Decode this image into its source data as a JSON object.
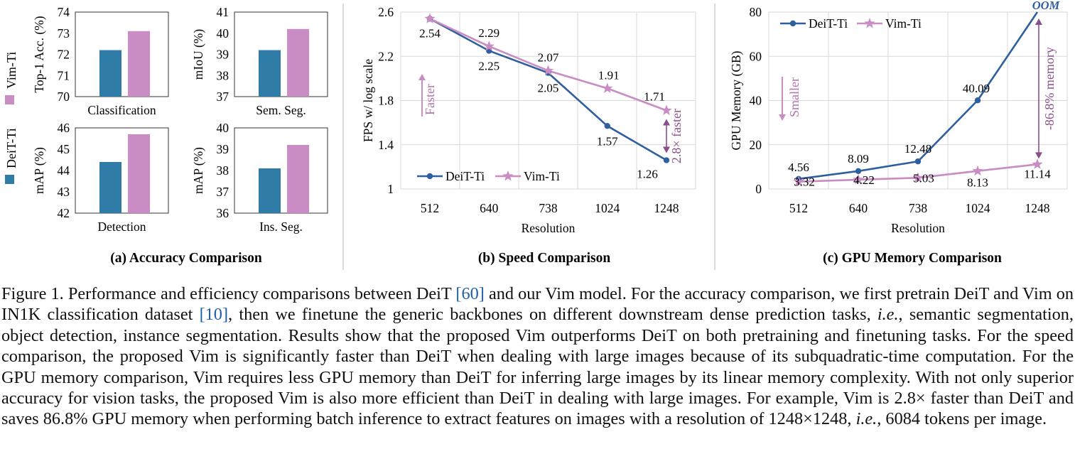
{
  "colors": {
    "deit": "#2f7ca8",
    "vim": "#c98cc3",
    "deit_line": "#2e5f9e",
    "vim_line": "#c98cc3",
    "vim_text": "#b175ac",
    "annot": "#8a4f8a"
  },
  "legend_a": {
    "vim": "Vim-Ti",
    "deit": "DeiT-Ti"
  },
  "panel_titles": {
    "a": "(a) Accuracy Comparison",
    "b": "(b) Speed Comparison",
    "c": "(c) GPU Memory Comparison"
  },
  "chart_data": [
    {
      "id": "classification",
      "type": "bar",
      "title": "Classification",
      "ylabel": "Top-1 Acc. (%)",
      "ylim": [
        70,
        74
      ],
      "yticks": [
        "70",
        "71",
        "72",
        "73",
        "74"
      ],
      "series": [
        {
          "name": "DeiT-Ti",
          "values": [
            72.2
          ]
        },
        {
          "name": "Vim-Ti",
          "values": [
            73.1
          ]
        }
      ]
    },
    {
      "id": "semseg",
      "type": "bar",
      "title": "Sem. Seg.",
      "ylabel": "mIoU (%)",
      "ylim": [
        37,
        41
      ],
      "yticks": [
        "37",
        "38",
        "39",
        "40",
        "41"
      ],
      "series": [
        {
          "name": "DeiT-Ti",
          "values": [
            39.2
          ]
        },
        {
          "name": "Vim-Ti",
          "values": [
            40.2
          ]
        }
      ]
    },
    {
      "id": "detection",
      "type": "bar",
      "title": "Detection",
      "ylabel": "mAP (%)",
      "ylim": [
        42,
        46
      ],
      "yticks": [
        "42",
        "43",
        "44",
        "45",
        "46"
      ],
      "series": [
        {
          "name": "DeiT-Ti",
          "values": [
            44.4
          ]
        },
        {
          "name": "Vim-Ti",
          "values": [
            45.7
          ]
        }
      ]
    },
    {
      "id": "insseg",
      "type": "bar",
      "title": "Ins. Seg.",
      "ylabel": "mAP (%)",
      "ylim": [
        36,
        40
      ],
      "yticks": [
        "36",
        "37",
        "38",
        "39",
        "40"
      ],
      "series": [
        {
          "name": "DeiT-Ti",
          "values": [
            38.1
          ]
        },
        {
          "name": "Vim-Ti",
          "values": [
            39.2
          ]
        }
      ]
    },
    {
      "id": "speed",
      "type": "line",
      "xlabel": "Resolution",
      "ylabel": "FPS w/ log scale",
      "categories": [
        "512",
        "640",
        "738",
        "1024",
        "1248"
      ],
      "ylim": [
        1,
        2.6
      ],
      "yticks": [
        "1",
        "1.4",
        "1.8",
        "2.2",
        "2.6"
      ],
      "series": [
        {
          "name": "DeiT-Ti",
          "values": [
            2.54,
            2.25,
            2.05,
            1.57,
            1.26
          ],
          "labels": [
            "2.54",
            "2.25",
            "2.05",
            "1.57",
            "1.26"
          ]
        },
        {
          "name": "Vim-Ti",
          "values": [
            2.54,
            2.29,
            2.07,
            1.91,
            1.71
          ],
          "labels": [
            "",
            "2.29",
            "2.07",
            "1.91",
            "1.71"
          ]
        }
      ],
      "arrow_label": "Faster",
      "annotation": "2.8× faster",
      "legend": [
        "DeiT-Ti",
        "Vim-Ti"
      ]
    },
    {
      "id": "memory",
      "type": "line",
      "xlabel": "Resolution",
      "ylabel": "GPU Memory (GB)",
      "categories": [
        "512",
        "640",
        "738",
        "1024",
        "1248"
      ],
      "ylim": [
        0,
        80
      ],
      "yticks": [
        "0",
        "20",
        "40",
        "60",
        "80"
      ],
      "series": [
        {
          "name": "DeiT-Ti",
          "values": [
            4.56,
            8.09,
            12.48,
            40.09,
            80
          ],
          "labels": [
            "4.56",
            "8.09",
            "12.48",
            "40.09",
            ""
          ]
        },
        {
          "name": "Vim-Ti",
          "values": [
            3.32,
            4.22,
            5.03,
            8.13,
            11.14
          ],
          "labels": [
            "3.32",
            "4.22",
            "5.03",
            "8.13",
            "11.14"
          ]
        }
      ],
      "oom_label": "OOM",
      "arrow_label": "Smaller",
      "annotation": "-86.8% memory",
      "legend": [
        "DeiT-Ti",
        "Vim-Ti"
      ]
    }
  ],
  "caption": {
    "s1": "Figure 1. Performance and efficiency comparisons between DeiT ",
    "c1": "[60]",
    "s2": " and our Vim model. For the accuracy comparison, we first pretrain DeiT and Vim on IN1K classification dataset ",
    "c2": "[10]",
    "s3": ", then we finetune the generic backbones on different downstream dense prediction tasks, ",
    "ie1": "i.e.",
    "s4": ", semantic segmentation, object detection, instance segmentation.  Results show that the proposed Vim outperforms DeiT on both pretraining and finetuning tasks.  For the speed comparison, the proposed Vim is significantly faster than DeiT when dealing with large images because of its subquadratic-time computation. For the GPU memory comparison, Vim requires less GPU memory than DeiT for inferring large images by its linear memory complexity.  With not only superior accuracy for vision tasks, the proposed Vim is also more efficient than DeiT in dealing with large images. For example, Vim is 2.8× faster than DeiT and saves 86.8% GPU memory when performing batch inference to extract features on images with a resolution of 1248×1248, ",
    "ie2": "i.e.",
    "s5": ", 6084 tokens per image."
  }
}
